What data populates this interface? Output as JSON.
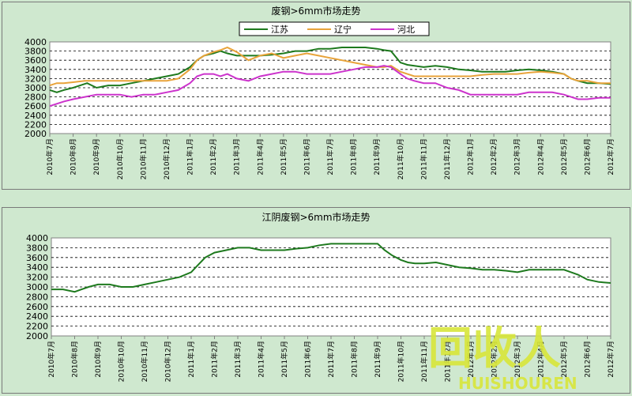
{
  "colors": {
    "background": "#cfe8cf",
    "plot": "#ffffff",
    "jiangsu": "#1e7a1e",
    "liaoning": "#e8a33a",
    "hebei": "#cc33cc",
    "jiangyin": "#1e7a1e",
    "watermark": "#d8e63a"
  },
  "watermark": {
    "glyphs": "回收人",
    "text": "HUISHOUREN"
  },
  "chart_data": [
    {
      "type": "line",
      "title": "废钢>6mm市场走势",
      "xlabel": "",
      "ylabel": "",
      "ylim": [
        2000,
        4000
      ],
      "yticks": [
        2000,
        2200,
        2400,
        2600,
        2800,
        3000,
        3200,
        3400,
        3600,
        3800,
        4000
      ],
      "grid": "horizontal dashed",
      "legend": "top",
      "categories": [
        "2010年7月",
        "2010年8月",
        "2010年9月",
        "2010年10月",
        "2010年11月",
        "2010年12月",
        "2011年1月",
        "2011年2月",
        "2011年3月",
        "2011年4月",
        "2011年5月",
        "2011年6月",
        "2011年7月",
        "2011年8月",
        "2011年9月",
        "2011年10月",
        "2011年11月",
        "2011年12月",
        "2012年1月",
        "2012年2月",
        "2012年3月",
        "2012年4月",
        "2012年5月",
        "2012年6月",
        "2012年7月"
      ],
      "series": [
        {
          "name": "江苏",
          "color": "#1e7a1e",
          "x": [
            0,
            0.3,
            0.6,
            1,
            1.3,
            1.6,
            2,
            2.5,
            3,
            3.5,
            4,
            4.5,
            5,
            5.5,
            6,
            6.3,
            6.6,
            7,
            7.3,
            7.6,
            8,
            8.5,
            9,
            9.5,
            10,
            10.5,
            11,
            11.5,
            12,
            12.5,
            13,
            13.5,
            14,
            14.3,
            14.6,
            15,
            15.3,
            15.6,
            16,
            16.5,
            17,
            17.5,
            18,
            18.5,
            19,
            19.5,
            20,
            20.5,
            21,
            21.5,
            22,
            22.3,
            22.6,
            23,
            23.5,
            24
          ],
          "values": [
            2950,
            2900,
            2950,
            3000,
            3050,
            3100,
            3000,
            3050,
            3050,
            3100,
            3150,
            3200,
            3250,
            3300,
            3450,
            3600,
            3700,
            3750,
            3800,
            3750,
            3700,
            3700,
            3700,
            3720,
            3750,
            3800,
            3800,
            3850,
            3850,
            3880,
            3880,
            3880,
            3850,
            3820,
            3800,
            3550,
            3500,
            3480,
            3450,
            3480,
            3450,
            3400,
            3380,
            3350,
            3350,
            3350,
            3380,
            3400,
            3380,
            3350,
            3300,
            3200,
            3150,
            3100,
            3100,
            3080
          ]
        },
        {
          "name": "辽宁",
          "color": "#e8a33a",
          "x": [
            0,
            0.3,
            0.6,
            1,
            1.5,
            2,
            2.5,
            3,
            3.5,
            4,
            4.5,
            5,
            5.5,
            6,
            6.3,
            6.6,
            7,
            7.3,
            7.6,
            8,
            8.5,
            9,
            9.5,
            10,
            10.5,
            11,
            11.5,
            12,
            12.5,
            13,
            13.5,
            14,
            14.3,
            14.6,
            15,
            15.3,
            15.6,
            16,
            16.5,
            17,
            17.5,
            18,
            18.5,
            19,
            19.5,
            20,
            20.5,
            21,
            21.5,
            22,
            22.3,
            22.6,
            23,
            23.5,
            24
          ],
          "values": [
            3050,
            3100,
            3100,
            3120,
            3150,
            3150,
            3150,
            3150,
            3150,
            3150,
            3150,
            3150,
            3200,
            3400,
            3600,
            3700,
            3780,
            3820,
            3880,
            3780,
            3600,
            3700,
            3750,
            3650,
            3700,
            3750,
            3700,
            3650,
            3600,
            3550,
            3500,
            3450,
            3450,
            3480,
            3350,
            3300,
            3250,
            3250,
            3250,
            3250,
            3250,
            3250,
            3280,
            3300,
            3300,
            3300,
            3330,
            3350,
            3330,
            3300,
            3200,
            3150,
            3150,
            3100,
            3100
          ]
        },
        {
          "name": "河北",
          "color": "#cc33cc",
          "x": [
            0,
            0.3,
            0.6,
            1,
            1.5,
            2,
            2.5,
            3,
            3.5,
            4,
            4.5,
            5,
            5.5,
            6,
            6.3,
            6.6,
            7,
            7.3,
            7.6,
            8,
            8.5,
            9,
            9.5,
            10,
            10.5,
            11,
            11.5,
            12,
            12.5,
            13,
            13.5,
            14,
            14.3,
            14.6,
            15,
            15.3,
            15.6,
            16,
            16.5,
            17,
            17.5,
            18,
            18.5,
            19,
            19.5,
            20,
            20.5,
            21,
            21.5,
            22,
            22.3,
            22.6,
            23,
            23.5,
            24
          ],
          "values": [
            2600,
            2650,
            2700,
            2750,
            2800,
            2850,
            2850,
            2850,
            2800,
            2850,
            2850,
            2900,
            2950,
            3100,
            3250,
            3300,
            3300,
            3250,
            3300,
            3200,
            3150,
            3250,
            3300,
            3350,
            3350,
            3300,
            3300,
            3300,
            3350,
            3400,
            3450,
            3450,
            3480,
            3450,
            3300,
            3200,
            3150,
            3100,
            3100,
            3000,
            2950,
            2850,
            2850,
            2850,
            2850,
            2850,
            2900,
            2900,
            2900,
            2850,
            2800,
            2750,
            2750,
            2780,
            2780
          ]
        }
      ]
    },
    {
      "type": "line",
      "title": "江阴废钢>6mm市场走势",
      "xlabel": "",
      "ylabel": "",
      "ylim": [
        2000,
        4000
      ],
      "yticks": [
        2000,
        2200,
        2400,
        2600,
        2800,
        3000,
        3200,
        3400,
        3600,
        3800,
        4000
      ],
      "grid": "horizontal dashed",
      "legend": "none",
      "categories": [
        "2010年7月",
        "2010年8月",
        "2010年9月",
        "2010年10月",
        "2010年11月",
        "2010年12月",
        "2011年1月",
        "2011年2月",
        "2011年3月",
        "2011年4月",
        "2011年5月",
        "2011年6月",
        "2011年7月",
        "2011年8月",
        "2011年9月",
        "2011年10月",
        "2011年11月",
        "2011年12月",
        "2012年1月",
        "2012年2月",
        "2012年3月",
        "2012年4月",
        "2012年5月",
        "2012年6月",
        "2012年7月"
      ],
      "series": [
        {
          "color": "#1e7a1e",
          "x": [
            0,
            0.5,
            1,
            1.3,
            1.6,
            2,
            2.5,
            3,
            3.5,
            4,
            4.5,
            5,
            5.5,
            6,
            6.3,
            6.6,
            7,
            7.5,
            8,
            8.5,
            9,
            9.5,
            10,
            10.5,
            11,
            11.5,
            12,
            12.5,
            13,
            13.5,
            14,
            14.3,
            14.6,
            15,
            15.3,
            15.6,
            16,
            16.5,
            17,
            17.5,
            18,
            18.5,
            19,
            19.5,
            20,
            20.5,
            21,
            21.5,
            22,
            22.3,
            22.6,
            23,
            23.5,
            24
          ],
          "values": [
            2950,
            2950,
            2900,
            2950,
            3000,
            3050,
            3050,
            3000,
            3000,
            3050,
            3100,
            3150,
            3200,
            3300,
            3450,
            3600,
            3700,
            3750,
            3800,
            3800,
            3750,
            3750,
            3750,
            3780,
            3800,
            3850,
            3880,
            3880,
            3880,
            3880,
            3880,
            3750,
            3650,
            3550,
            3500,
            3480,
            3480,
            3500,
            3450,
            3400,
            3380,
            3350,
            3350,
            3330,
            3300,
            3350,
            3350,
            3350,
            3350,
            3300,
            3250,
            3150,
            3100,
            3080
          ]
        }
      ]
    }
  ]
}
